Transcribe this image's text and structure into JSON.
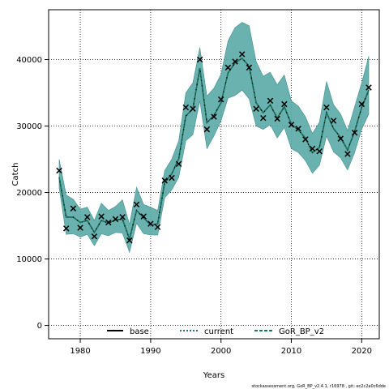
{
  "chart_data": {
    "type": "line",
    "xlabel": "Years",
    "ylabel": "Catch",
    "xlim": [
      1975.5,
      2022.5
    ],
    "ylim": [
      -2000,
      47500
    ],
    "xticks": [
      1980,
      1990,
      2000,
      2010,
      2020
    ],
    "yticks": [
      0,
      10000,
      20000,
      30000,
      40000
    ],
    "grid": true,
    "legend_position": "bottom",
    "band_color": "#5aaaa6",
    "band_edge_color": "#3f8f8c",
    "x": [
      1977,
      1978,
      1979,
      1980,
      1981,
      1982,
      1983,
      1984,
      1985,
      1986,
      1987,
      1988,
      1989,
      1990,
      1991,
      1992,
      1993,
      1994,
      1995,
      1996,
      1997,
      1998,
      1999,
      2000,
      2001,
      2002,
      2003,
      2004,
      2005,
      2006,
      2007,
      2008,
      2009,
      2010,
      2011,
      2012,
      2013,
      2014,
      2015,
      2016,
      2017,
      2018,
      2019,
      2020,
      2021
    ],
    "observed": [
      23300,
      14600,
      17600,
      14700,
      16300,
      13400,
      16400,
      15500,
      16000,
      16300,
      12800,
      18200,
      16400,
      15300,
      14800,
      21800,
      22200,
      24300,
      32800,
      32600,
      40000,
      29500,
      31400,
      34000,
      38800,
      39700,
      40800,
      38800,
      32600,
      31200,
      33800,
      31100,
      33300,
      30200,
      29600,
      28000,
      26600,
      26200,
      32800,
      30800,
      28100,
      25800,
      29000,
      33300,
      35800
    ],
    "series": [
      {
        "name": "base",
        "color": "#000000",
        "style": "solid",
        "values": [
          22300,
          16300,
          16300,
          15500,
          15800,
          14000,
          15800,
          15400,
          15900,
          16000,
          13000,
          17300,
          16200,
          15100,
          15300,
          21500,
          22800,
          25100,
          31500,
          32600,
          38700,
          30500,
          31600,
          33500,
          38000,
          39500,
          40200,
          39000,
          33500,
          32000,
          33200,
          31200,
          32900,
          30300,
          29400,
          28200,
          26000,
          26800,
          32000,
          29600,
          28300,
          26400,
          29200,
          32800,
          35400
        ]
      },
      {
        "name": "current",
        "color": "#1f6f9f",
        "style": "dotted",
        "values": [
          22300,
          16300,
          16300,
          15500,
          15800,
          14000,
          15800,
          15400,
          15900,
          16000,
          13000,
          17300,
          16200,
          15100,
          15300,
          21500,
          22800,
          25100,
          31500,
          32600,
          38700,
          30500,
          31600,
          33500,
          38000,
          39500,
          40200,
          39000,
          33500,
          32000,
          33200,
          31200,
          32900,
          30300,
          29400,
          28200,
          26000,
          26800,
          32000,
          29600,
          28300,
          26400,
          29200,
          32800,
          35400
        ]
      },
      {
        "name": "GoR_BP_v2",
        "color": "#1a7a55",
        "style": "dashed",
        "values": [
          22300,
          16300,
          16300,
          15500,
          15800,
          14000,
          15800,
          15400,
          15900,
          16000,
          13000,
          17300,
          16200,
          15100,
          15300,
          21500,
          22800,
          25100,
          31500,
          32600,
          38700,
          30500,
          31600,
          33500,
          38000,
          39500,
          40200,
          39000,
          33500,
          32000,
          33200,
          31200,
          32900,
          30300,
          29400,
          28200,
          26000,
          26800,
          32000,
          29600,
          28300,
          26400,
          29200,
          32800,
          35400
        ]
      }
    ],
    "band_upper": [
      25000,
      19600,
      19000,
      17500,
      17800,
      15800,
      18400,
      17300,
      17900,
      18900,
      15200,
      20800,
      18200,
      17800,
      17300,
      23300,
      25000,
      27800,
      35000,
      36500,
      41800,
      34500,
      35700,
      37800,
      42800,
      44800,
      45600,
      45100,
      39700,
      37500,
      38100,
      36200,
      37700,
      33800,
      33000,
      31400,
      28900,
      30600,
      36700,
      33200,
      31800,
      29300,
      32900,
      36500,
      40500
    ],
    "band_lower": [
      20700,
      13700,
      13800,
      13300,
      13700,
      12000,
      13800,
      13500,
      14000,
      13900,
      11000,
      15400,
      13800,
      13600,
      13600,
      19200,
      20400,
      22300,
      27800,
      28700,
      33800,
      26600,
      28500,
      30800,
      34200,
      34600,
      35400,
      34100,
      30000,
      29500,
      30200,
      28200,
      29800,
      26600,
      26000,
      24800,
      22900,
      24100,
      28500,
      26100,
      25200,
      23400,
      26000,
      29500,
      31800
    ]
  },
  "legend": {
    "base": "base",
    "current": "current",
    "gor": "GoR_BP_v2"
  },
  "footnote": "stockassessment.org, GoR_BP_v2.4.1, r16978 , git: ec2c2a0c6dde"
}
